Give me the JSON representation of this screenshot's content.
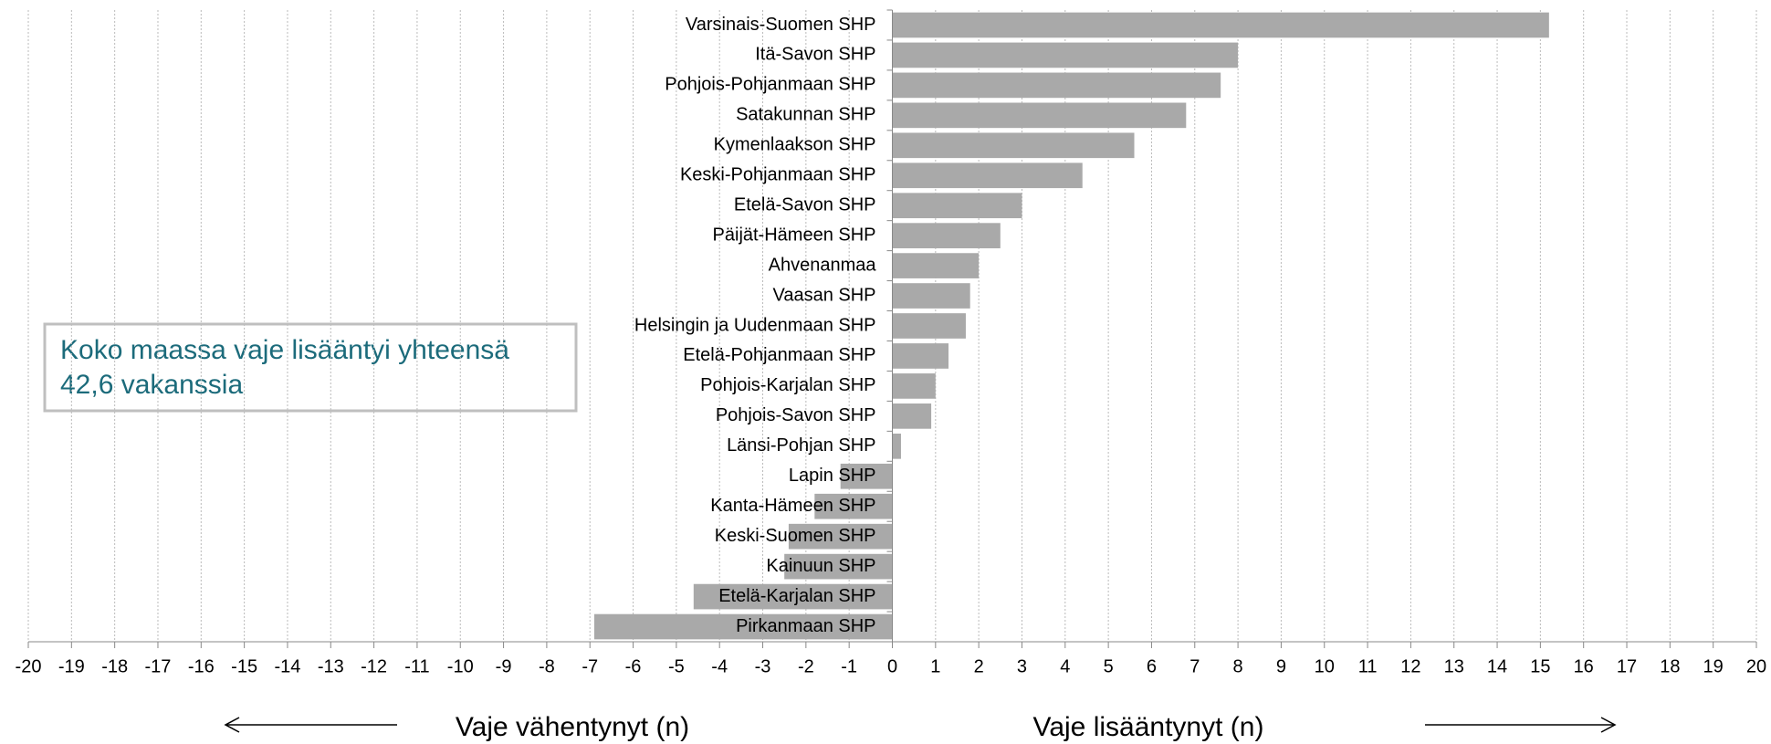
{
  "chart_data": {
    "type": "hbar",
    "categories": [
      "Varsinais-Suomen SHP",
      "Itä-Savon SHP",
      "Pohjois-Pohjanmaan SHP",
      "Satakunnan SHP",
      "Kymenlaakson SHP",
      "Keski-Pohjanmaan SHP",
      "Etelä-Savon SHP",
      "Päijät-Hämeen SHP",
      "Ahvenanmaa",
      "Vaasan SHP",
      "Helsingin ja Uudenmaan SHP",
      "Etelä-Pohjanmaan  SHP",
      "Pohjois-Karjalan SHP",
      "Pohjois-Savon SHP",
      "Länsi-Pohjan SHP",
      "Lapin SHP",
      "Kanta-Hämeen SHP",
      "Keski-Suomen SHP",
      "Kainuun SHP",
      "Etelä-Karjalan SHP",
      "Pirkanmaan SHP"
    ],
    "values": [
      15.2,
      8.0,
      7.6,
      6.8,
      5.6,
      4.4,
      3.0,
      2.5,
      2.0,
      1.8,
      1.7,
      1.3,
      1.0,
      0.9,
      0.2,
      -1.2,
      -1.8,
      -2.4,
      -2.5,
      -4.6,
      -6.9
    ],
    "color": "#a9a9a9",
    "xlim": [
      -20,
      20
    ],
    "xticks": [
      -20,
      -19,
      -18,
      -17,
      -16,
      -15,
      -14,
      -13,
      -12,
      -11,
      -10,
      -9,
      -8,
      -7,
      -6,
      -5,
      -4,
      -3,
      -2,
      -1,
      0,
      1,
      2,
      3,
      4,
      5,
      6,
      7,
      8,
      9,
      10,
      11,
      12,
      13,
      14,
      15,
      16,
      17,
      18,
      19,
      20
    ],
    "grid": true,
    "annotation": [
      "Koko maassa vaje lisääntyi yhteensä",
      "42,6 vakanssia"
    ],
    "left_label": "Vaje vähentynyt (n)",
    "right_label": "Vaje lisääntynyt (n)"
  }
}
